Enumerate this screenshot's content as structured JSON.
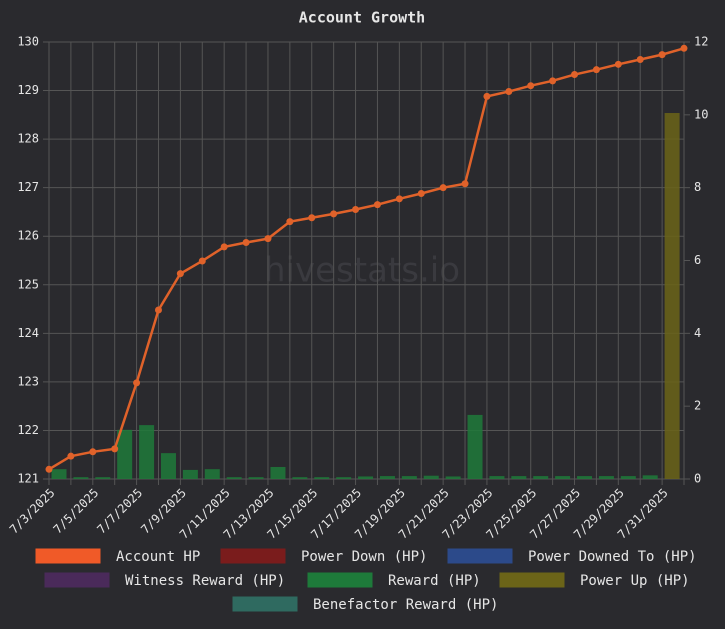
{
  "chart_data": {
    "type": "bar_line",
    "title": "Account Growth",
    "watermark": "hivestats.io",
    "categories": [
      "7/3/2025",
      null,
      "7/5/2025",
      null,
      "7/7/2025",
      null,
      "7/9/2025",
      null,
      "7/11/2025",
      null,
      "7/13/2025",
      null,
      "7/15/2025",
      null,
      "7/17/2025",
      null,
      "7/19/2025",
      null,
      "7/21/2025",
      null,
      "7/23/2025",
      null,
      "7/25/2025",
      null,
      "7/27/2025",
      null,
      "7/29/2025",
      null,
      "7/31/2025",
      null
    ],
    "ylim": [
      121,
      130
    ],
    "yticks": [
      121,
      122,
      123,
      124,
      125,
      126,
      127,
      128,
      129,
      130
    ],
    "y2lim": [
      0,
      12
    ],
    "y2ticks": [
      0,
      2,
      4,
      6,
      8,
      10,
      12
    ],
    "grid": true,
    "legend": "bottom",
    "series": [
      {
        "name": "Account HP",
        "type": "line",
        "color": "#f05a28",
        "line_color": "#e0622a",
        "values": [
          121.2,
          121.47,
          121.56,
          121.62,
          122.98,
          124.48,
          125.23,
          125.49,
          125.78,
          125.87,
          125.95,
          126.3,
          126.38,
          126.46,
          126.55,
          126.65,
          126.77,
          126.88,
          127.0,
          127.08,
          128.88,
          128.98,
          129.1,
          129.2,
          129.33,
          129.43,
          129.54,
          129.64,
          129.74,
          129.87
        ]
      },
      {
        "name": "Power Down (HP)",
        "type": "bar",
        "axis": "y2",
        "color": "#7a1c1c"
      },
      {
        "name": "Power Downed To (HP)",
        "type": "bar",
        "axis": "y2",
        "color": "#2c4a8a"
      },
      {
        "name": "Witness Reward (HP)",
        "type": "bar",
        "axis": "y2",
        "color": "#4a2a5a"
      },
      {
        "name": "Reward (HP)",
        "type": "bar",
        "axis": "y2",
        "color": "#1e7a3a",
        "values": [
          0.27,
          0.05,
          0.05,
          1.35,
          1.48,
          0.71,
          0.25,
          0.27,
          0.05,
          0.05,
          0.33,
          0.05,
          0.05,
          0.05,
          0.07,
          0.08,
          0.08,
          0.09,
          0.07,
          1.76,
          0.08,
          0.08,
          0.08,
          0.08,
          0.08,
          0.08,
          0.08,
          0.1,
          0,
          0
        ]
      },
      {
        "name": "Power Up (HP)",
        "type": "bar",
        "axis": "y2",
        "color": "#6b6418",
        "values": [
          0,
          0,
          0,
          0,
          0,
          0,
          0,
          0,
          0,
          0,
          0,
          0,
          0,
          0,
          0,
          0,
          0,
          0,
          0,
          0,
          0,
          0,
          0,
          0,
          0,
          0,
          0,
          0,
          10.05,
          0
        ]
      },
      {
        "name": "Benefactor Reward (HP)",
        "type": "bar",
        "axis": "y2",
        "color": "#2f6a60"
      }
    ]
  }
}
